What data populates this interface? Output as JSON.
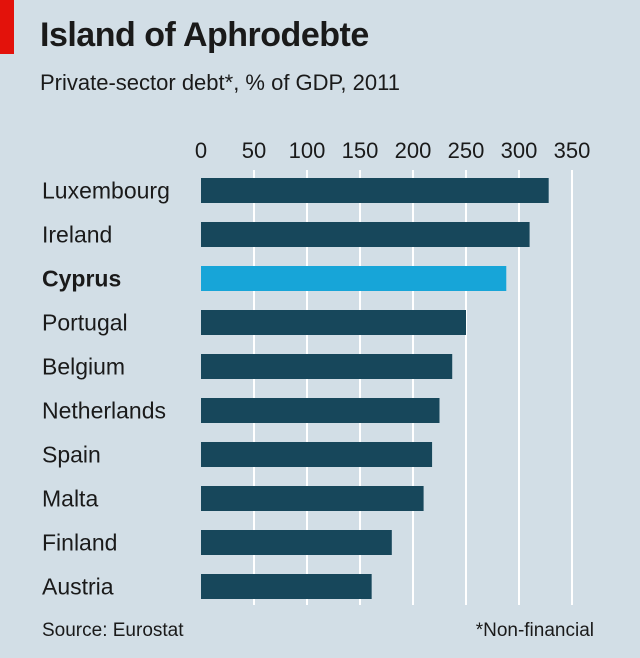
{
  "header": {
    "title": "Island of Aphrodebte",
    "subtitle": "Private-sector debt*, % of GDP, 2011"
  },
  "footer": {
    "source": "Source: Eurostat",
    "footnote": "*Non-financial"
  },
  "colors": {
    "background": "#d2dee6",
    "bar": "#17475b",
    "highlight_bar": "#17a5d8",
    "accent": "#e3120b",
    "gridline": "#ffffff"
  },
  "chart_data": {
    "type": "bar",
    "orientation": "horizontal",
    "title": "Island of Aphrodebte",
    "subtitle": "Private-sector debt*, % of GDP, 2011",
    "xlabel": "",
    "ylabel": "",
    "xlim": [
      0,
      350
    ],
    "ticks": [
      0,
      50,
      100,
      150,
      200,
      250,
      300,
      350
    ],
    "tick_labels": [
      "0",
      "50",
      "100",
      "150",
      "200",
      "250",
      "300",
      "350"
    ],
    "grid": true,
    "axis_position": "top",
    "highlight": "Cyprus",
    "categories": [
      "Luxembourg",
      "Ireland",
      "Cyprus",
      "Portugal",
      "Belgium",
      "Netherlands",
      "Spain",
      "Malta",
      "Finland",
      "Austria"
    ],
    "values": [
      328,
      310,
      288,
      250,
      237,
      225,
      218,
      210,
      180,
      161
    ]
  }
}
